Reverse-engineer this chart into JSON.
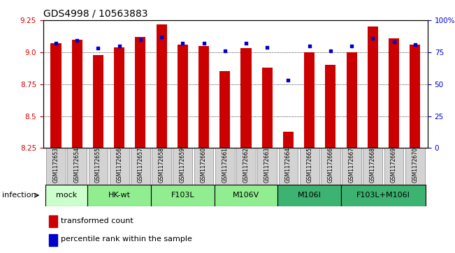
{
  "title": "GDS4998 / 10563883",
  "samples": [
    "GSM1172653",
    "GSM1172654",
    "GSM1172655",
    "GSM1172656",
    "GSM1172657",
    "GSM1172658",
    "GSM1172659",
    "GSM1172660",
    "GSM1172661",
    "GSM1172662",
    "GSM1172663",
    "GSM1172664",
    "GSM1172665",
    "GSM1172666",
    "GSM1172667",
    "GSM1172668",
    "GSM1172669",
    "GSM1172670"
  ],
  "transformed_counts": [
    9.07,
    9.1,
    8.98,
    9.04,
    9.12,
    9.22,
    9.06,
    9.05,
    8.85,
    9.03,
    8.88,
    8.38,
    9.0,
    8.9,
    9.0,
    9.2,
    9.11,
    9.06
  ],
  "percentile_ranks": [
    82,
    84,
    78,
    80,
    85,
    87,
    82,
    82,
    76,
    82,
    79,
    53,
    80,
    76,
    80,
    86,
    83,
    81
  ],
  "ylim_left": [
    8.25,
    9.25
  ],
  "yticks_left": [
    8.25,
    8.5,
    8.75,
    9.0,
    9.25
  ],
  "yticks_right": [
    0,
    25,
    50,
    75,
    100
  ],
  "bar_color": "#cc0000",
  "dot_color": "#0000cc",
  "bar_width": 0.5,
  "groups": [
    {
      "label": "mock",
      "start": 0,
      "end": 2,
      "color": "#ccffcc"
    },
    {
      "label": "HK-wt",
      "start": 2,
      "end": 5,
      "color": "#90ee90"
    },
    {
      "label": "F103L",
      "start": 5,
      "end": 8,
      "color": "#90ee90"
    },
    {
      "label": "M106V",
      "start": 8,
      "end": 11,
      "color": "#90ee90"
    },
    {
      "label": "M106I",
      "start": 11,
      "end": 14,
      "color": "#3cb371"
    },
    {
      "label": "F103L+M106I",
      "start": 14,
      "end": 18,
      "color": "#3cb371"
    }
  ],
  "group_row_label": "infection",
  "legend_items": [
    {
      "label": "transformed count",
      "color": "#cc0000"
    },
    {
      "label": "percentile rank within the sample",
      "color": "#0000cc"
    }
  ],
  "title_fontsize": 10,
  "tick_fontsize": 7.5,
  "sample_fontsize": 5.5,
  "group_fontsize": 8,
  "legend_fontsize": 8,
  "sample_box_color": "#d3d3d3",
  "sample_box_edge": "#888888"
}
